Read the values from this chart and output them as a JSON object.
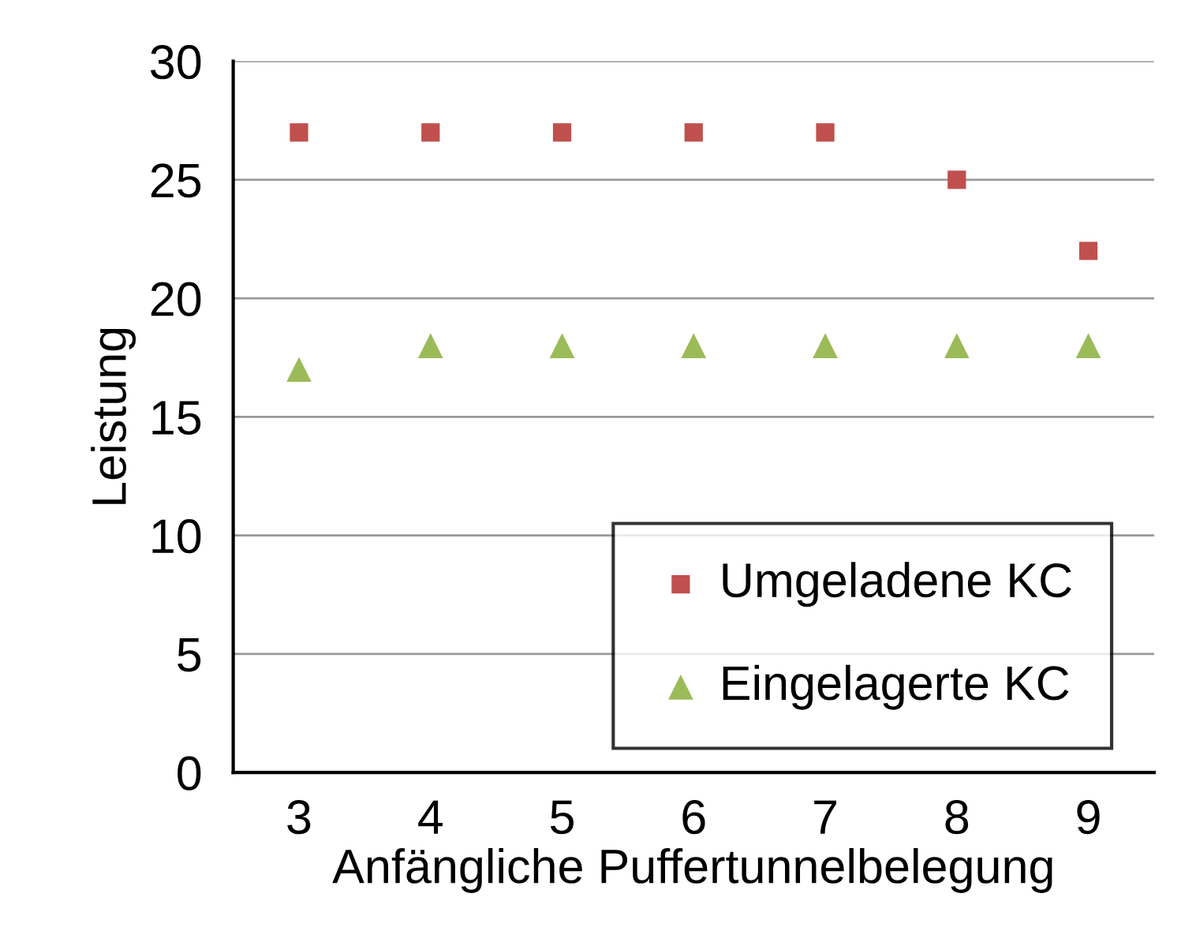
{
  "chart_data": {
    "type": "scatter",
    "xlabel": "Anfängliche Puffertunnelbelegung",
    "ylabel": "Leistung",
    "x": [
      3,
      4,
      5,
      6,
      7,
      8,
      9
    ],
    "xlim": [
      2.5,
      9.5
    ],
    "xticks": [
      3,
      4,
      5,
      6,
      7,
      8,
      9
    ],
    "ylim": [
      0,
      30
    ],
    "yticks": [
      0,
      5,
      10,
      15,
      20,
      25,
      30
    ],
    "grid": "y",
    "legend": "bottom right",
    "series": [
      {
        "name": "Umgeladene KC",
        "color": "#c0504d",
        "marker": "square",
        "values": [
          27,
          27,
          27,
          27,
          27,
          25,
          22
        ]
      },
      {
        "name": "Eingelagerte KC",
        "color": "#9bbb59",
        "marker": "triangle",
        "values": [
          17,
          18,
          18,
          18,
          18,
          18,
          18
        ]
      }
    ]
  }
}
